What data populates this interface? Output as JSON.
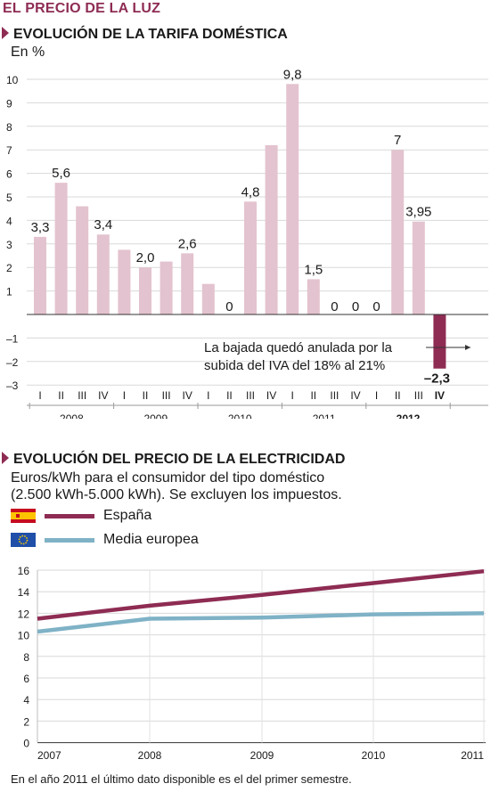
{
  "page_title": "EL PRECIO DE LA LUZ",
  "colors": {
    "accent": "#8e2c53",
    "bar": "#e3c3cf",
    "bar_highlight": "#8e2c53",
    "series_espana": "#8e2c53",
    "series_europa": "#7fb2c6"
  },
  "chart1": {
    "title": "EVOLUCIÓN DE LA TARIFA DOMÉSTICA",
    "unit": "En %",
    "annotation_line1": "La bajada quedó anulada por la",
    "annotation_line2": "subida del IVA del 18% al 21%"
  },
  "chart2": {
    "title": "EVOLUCIÓN DEL PRECIO DE LA ELECTRICIDAD",
    "subtitle_line1": "Euros/kWh para el consumidor del tipo doméstico",
    "subtitle_line2": "(2.500 kWh-5.000 kWh). Se excluyen los impuestos.",
    "legend": [
      {
        "label": "España",
        "flag_icon": "spain-flag-icon"
      },
      {
        "label": "Media europea",
        "flag_icon": "eu-flag-icon"
      }
    ],
    "footnote": "En el año 2011 el último dato disponible es el del primer semestre."
  },
  "chart_data": [
    {
      "type": "bar",
      "title": "EVOLUCIÓN DE LA TARIFA DOMÉSTICA",
      "ylabel": "En %",
      "ylim": [
        -3,
        10
      ],
      "yticks": [
        "10",
        "9",
        "8",
        "7",
        "6",
        "5",
        "4",
        "3",
        "2",
        "1",
        "",
        "–1",
        "–2",
        "–3"
      ],
      "years": [
        "2008",
        "2009",
        "2010",
        "2011",
        "2012"
      ],
      "quarters": [
        "I",
        "II",
        "III",
        "IV"
      ],
      "categories": [
        "I",
        "II",
        "III",
        "IV",
        "I",
        "II",
        "III",
        "IV",
        "I",
        "II",
        "III",
        "IV",
        "I",
        "II",
        "III",
        "IV",
        "I",
        "II",
        "III",
        "IV"
      ],
      "values": [
        3.3,
        5.6,
        4.6,
        3.4,
        2.75,
        2.0,
        2.25,
        2.6,
        1.3,
        0,
        4.8,
        7.2,
        9.8,
        1.5,
        0,
        0,
        0,
        7,
        3.95,
        -2.3
      ],
      "data_labels": [
        "3,3",
        "5,6",
        "",
        "3,4",
        "",
        "2,0",
        "",
        "2,6",
        "",
        "0",
        "4,8",
        "",
        "9,8",
        "1,5",
        "0",
        "0",
        "0",
        "7",
        "3,95",
        "–2,3"
      ],
      "highlight_index": 19,
      "grid": true
    },
    {
      "type": "line",
      "title": "EVOLUCIÓN DEL PRECIO DE LA ELECTRICIDAD",
      "x": [
        "2007",
        "2008",
        "2009",
        "2010",
        "2011"
      ],
      "ylim": [
        0,
        16
      ],
      "yticks": [
        "16",
        "14",
        "12",
        "10",
        "8",
        "6",
        "4",
        "2",
        "0"
      ],
      "series": [
        {
          "name": "España",
          "values": [
            11.5,
            12.7,
            13.7,
            14.8,
            15.9
          ]
        },
        {
          "name": "Media europea",
          "values": [
            10.3,
            11.5,
            11.6,
            11.9,
            12.0
          ]
        }
      ],
      "grid": true,
      "legend": "top-left"
    }
  ]
}
